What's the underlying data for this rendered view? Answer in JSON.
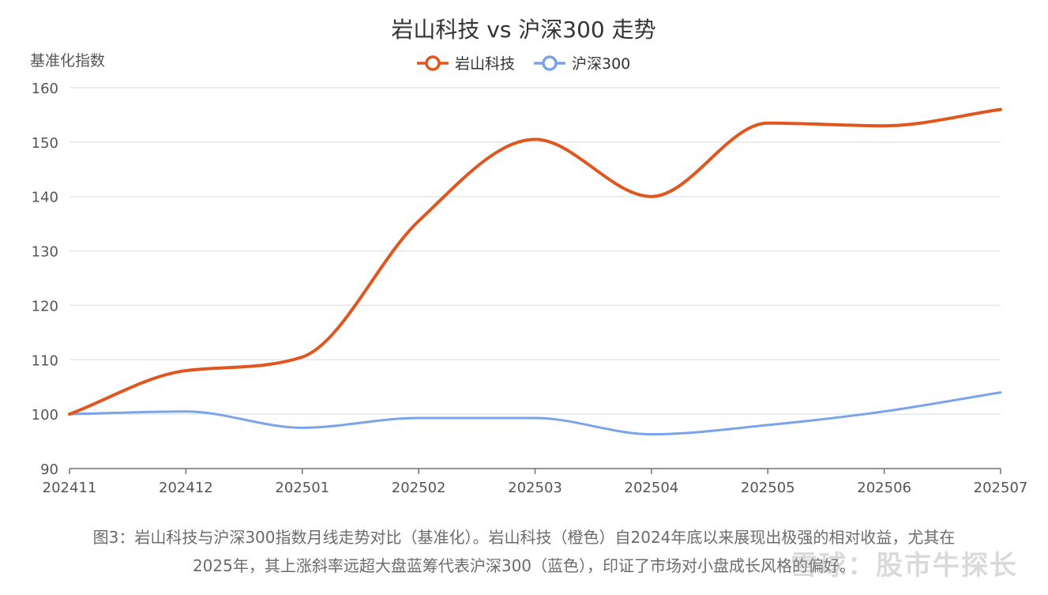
{
  "chart_data": {
    "type": "line",
    "title": "岩山科技 vs 沪深300 走势",
    "ylabel": "基准化指数",
    "xlabel": "",
    "categories": [
      "202411",
      "202412",
      "202501",
      "202502",
      "202503",
      "202504",
      "202505",
      "202506",
      "202507"
    ],
    "ylim": [
      90,
      160
    ],
    "yticks": [
      90,
      100,
      110,
      120,
      130,
      140,
      150,
      160
    ],
    "grid": true,
    "legend_position": "top-center",
    "series": [
      {
        "name": "岩山科技",
        "color": "#e0561f",
        "values": [
          100,
          108,
          110.5,
          135.5,
          150.5,
          140,
          153.5,
          153,
          156
        ]
      },
      {
        "name": "沪深300",
        "color": "#7ba3e8",
        "values": [
          100,
          100.5,
          97.5,
          99.3,
          99.3,
          96.3,
          98,
          100.5,
          104
        ]
      }
    ]
  },
  "caption": {
    "line1": "图3：岩山科技与沪深300指数月线走势对比（基准化）。岩山科技（橙色）自2024年底以来展现出极强的相对收益，尤其在",
    "line2": "2025年，其上涨斜率远超大盘蓝筹代表沪深300（蓝色），印证了市场对小盘成长风格的偏好。"
  },
  "watermark": "雪球：股市牛探长"
}
